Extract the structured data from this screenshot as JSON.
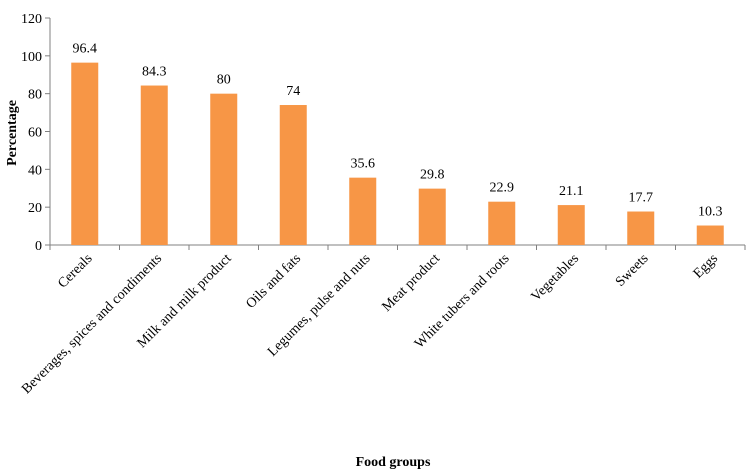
{
  "chart_data": {
    "type": "bar",
    "title": "",
    "xlabel": "Food groups",
    "ylabel": "Percentage",
    "ylim": [
      0,
      120
    ],
    "yticks": [
      0,
      20,
      40,
      60,
      80,
      100,
      120
    ],
    "grid": false,
    "bar_color": "#F79646",
    "categories": [
      "Cereals",
      "Beverages, spices and condiments",
      "Milk  and  milk product",
      "Oils and fats",
      "Legumes, pulse and nuts",
      "Meat product",
      "White tubers and roots",
      "Vegetables",
      "Sweets",
      "Eggs"
    ],
    "values": [
      96.4,
      84.3,
      80,
      74,
      35.6,
      29.8,
      22.9,
      21.1,
      17.7,
      10.3
    ],
    "data_labels": [
      "96.4",
      "84.3",
      "80",
      "74",
      "35.6",
      "29.8",
      "22.9",
      "21.1",
      "17.7",
      "10.3"
    ]
  }
}
